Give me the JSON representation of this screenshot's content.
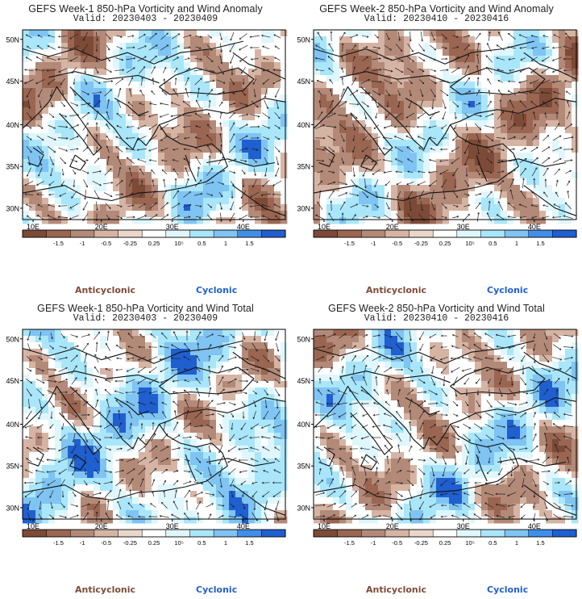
{
  "panels": [
    {
      "title": "GEFS Week-1 850-hPa Vorticity and Wind Anomaly",
      "valid": "Valid: 20230403 - 20230409",
      "bias": 0.0,
      "seed": 3
    },
    {
      "title": "GEFS Week-2 850-hPa Vorticity and Wind Anomaly",
      "valid": "Valid: 20230410 - 20230416",
      "bias": -0.25,
      "seed": 11
    },
    {
      "title": "GEFS Week-1 850-hPa Vorticity and Wind Total",
      "valid": "Valid: 20230403 - 20230409",
      "bias": 0.35,
      "seed": 21
    },
    {
      "title": "GEFS Week-2 850-hPa Vorticity and Wind Total",
      "valid": "Valid: 20230410 - 20230416",
      "bias": 0.1,
      "seed": 37
    }
  ],
  "lat_labels": [
    "50N",
    "45N",
    "40N",
    "35N",
    "30N"
  ],
  "lon_labels": [
    "10E",
    "20E",
    "30E",
    "40E"
  ],
  "colorbar": {
    "ticks": [
      "-1.5",
      "-1",
      "-0.5",
      "-0.25",
      "0.25",
      "0.5",
      "1",
      "1.5"
    ],
    "unit_label": "10⁵",
    "colors": [
      "#7d4a38",
      "#9a6651",
      "#b38978",
      "#d6b4a4",
      "#ebd6cb",
      "#ffffff",
      "#dff7fc",
      "#a9e6fa",
      "#7fc4f2",
      "#3f8eea",
      "#1f5fd0"
    ]
  },
  "legend": {
    "anticyclonic": "Anticyclonic",
    "cyclonic": "Cyclonic"
  }
}
